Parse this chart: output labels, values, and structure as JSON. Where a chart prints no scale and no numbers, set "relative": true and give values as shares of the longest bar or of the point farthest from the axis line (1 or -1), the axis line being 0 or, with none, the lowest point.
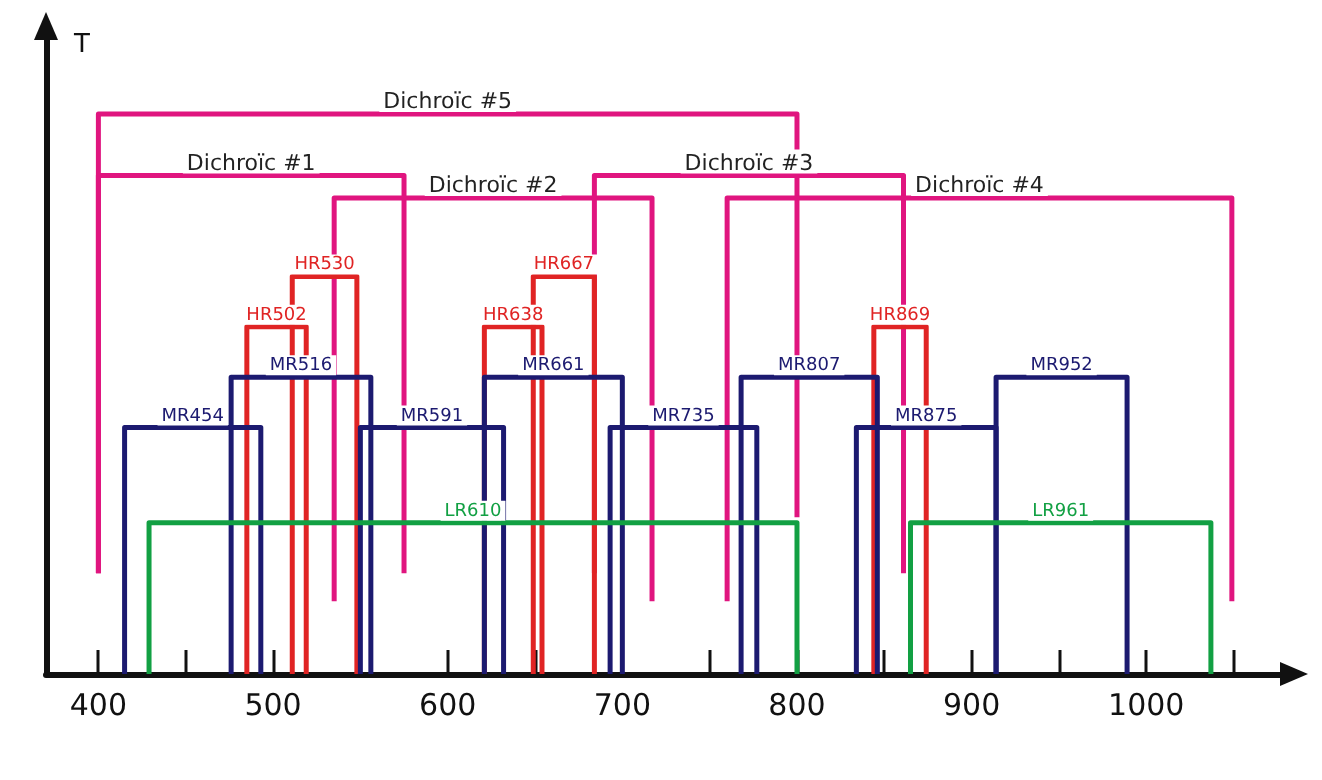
{
  "chart_data": {
    "type": "line",
    "relative": true,
    "ylabel": "T",
    "marker": "none",
    "grid": false,
    "legend": false,
    "xlim": [
      370,
      1080
    ],
    "xticks": [
      400,
      {
        "value": 450,
        "label": null
      },
      500,
      {
        "value": 550,
        "label": null
      },
      600,
      {
        "value": 650,
        "label": null
      },
      700,
      {
        "value": 750,
        "label": null
      },
      800,
      {
        "value": 850,
        "label": null
      },
      900,
      {
        "value": 950,
        "label": null
      },
      1000,
      {
        "value": 1050,
        "label": null
      }
    ],
    "series": [
      {
        "name": "Dichroïc #5",
        "color": "#e0157f",
        "x": [
          400,
          400,
          800,
          800
        ],
        "values": [
          0.18,
          1.0,
          1.0,
          0.28
        ]
      },
      {
        "name": "Dichroïc #1",
        "color": "#e0157f",
        "x": [
          400,
          400,
          575,
          575
        ],
        "values": [
          0.18,
          0.89,
          0.89,
          0.18
        ]
      },
      {
        "name": "Dichroïc #2",
        "color": "#e0157f",
        "x": [
          535,
          535,
          717,
          717
        ],
        "values": [
          0.13,
          0.85,
          0.85,
          0.13
        ]
      },
      {
        "name": "Dichroïc #3",
        "color": "#e0157f",
        "x": [
          684,
          684,
          861,
          861
        ],
        "values": [
          0.18,
          0.89,
          0.89,
          0.18
        ]
      },
      {
        "name": "Dichroïc #4",
        "color": "#e0157f",
        "x": [
          760,
          760,
          1049,
          1049
        ],
        "values": [
          0.13,
          0.85,
          0.85,
          0.13
        ]
      },
      {
        "name": "HR502",
        "color": "#e02424",
        "x": [
          485,
          485,
          519,
          519
        ],
        "values": [
          0,
          0.62,
          0.62,
          0
        ]
      },
      {
        "name": "HR530",
        "color": "#e02424",
        "x": [
          511,
          511,
          548,
          548
        ],
        "values": [
          0,
          0.71,
          0.71,
          0
        ]
      },
      {
        "name": "HR638",
        "color": "#e02424",
        "x": [
          621,
          621,
          654,
          654
        ],
        "values": [
          0,
          0.62,
          0.62,
          0
        ]
      },
      {
        "name": "HR667",
        "color": "#e02424",
        "x": [
          649,
          649,
          684,
          684
        ],
        "values": [
          0,
          0.71,
          0.71,
          0
        ]
      },
      {
        "name": "HR869",
        "color": "#e02424",
        "x": [
          844,
          844,
          874,
          874
        ],
        "values": [
          0,
          0.62,
          0.62,
          0
        ]
      },
      {
        "name": "MR454",
        "color": "#1c1a70",
        "x": [
          415,
          415,
          493,
          493
        ],
        "values": [
          0,
          0.44,
          0.44,
          0
        ]
      },
      {
        "name": "MR516",
        "color": "#1c1a70",
        "x": [
          476,
          476,
          556,
          556
        ],
        "values": [
          0,
          0.53,
          0.53,
          0
        ]
      },
      {
        "name": "MR591",
        "color": "#1c1a70",
        "x": [
          550,
          550,
          632,
          632
        ],
        "values": [
          0,
          0.44,
          0.44,
          0
        ]
      },
      {
        "name": "MR661",
        "color": "#1c1a70",
        "x": [
          621,
          621,
          700,
          700
        ],
        "values": [
          0,
          0.53,
          0.53,
          0
        ]
      },
      {
        "name": "MR735",
        "color": "#1c1a70",
        "x": [
          693,
          693,
          777,
          777
        ],
        "values": [
          0,
          0.44,
          0.44,
          0
        ]
      },
      {
        "name": "MR807",
        "color": "#1c1a70",
        "x": [
          768,
          768,
          846,
          846
        ],
        "values": [
          0,
          0.53,
          0.53,
          0
        ]
      },
      {
        "name": "MR875",
        "color": "#1c1a70",
        "x": [
          834,
          834,
          914,
          914
        ],
        "values": [
          0,
          0.44,
          0.44,
          0
        ]
      },
      {
        "name": "MR952",
        "color": "#1c1a70",
        "x": [
          914,
          914,
          989,
          989
        ],
        "values": [
          0,
          0.53,
          0.53,
          0
        ]
      },
      {
        "name": "LR610",
        "color": "#12a043",
        "x": [
          429,
          429,
          800,
          800
        ],
        "values": [
          0,
          0.27,
          0.27,
          0
        ]
      },
      {
        "name": "LR961",
        "color": "#12a043",
        "x": [
          865,
          865,
          1037,
          1037
        ],
        "values": [
          0,
          0.27,
          0.27,
          0
        ]
      }
    ]
  }
}
